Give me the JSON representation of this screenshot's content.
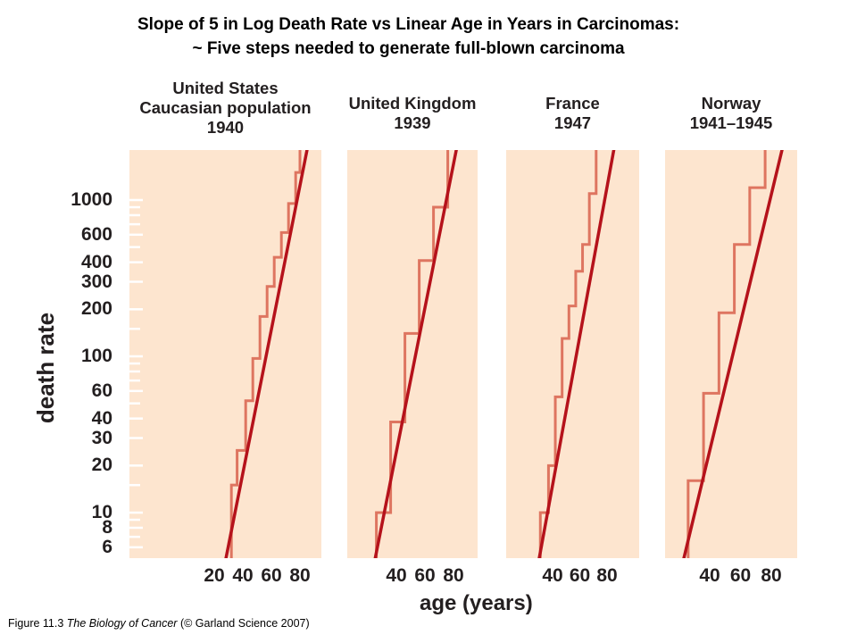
{
  "slide": {
    "title_line1": "Slope of 5 in Log Death Rate vs Linear Age in Years in Carcinomas:",
    "title_line2": "~ Five steps needed to generate full-blown carcinoma"
  },
  "caption": {
    "prefix": "Figure 11.3  ",
    "book": "The Biology of Cancer",
    "suffix": " (© Garland Science 2007)"
  },
  "chart_data": {
    "type": "line",
    "ylabel": "death rate",
    "xlabel": "age (years)",
    "y_scale": "log",
    "y_ticks": [
      6,
      8,
      10,
      20,
      30,
      40,
      60,
      100,
      200,
      300,
      400,
      600,
      1000
    ],
    "colors": {
      "panel_bg": "#fde5cf",
      "fit_line": "#b5121b",
      "steps": "#de7560"
    },
    "panels": [
      {
        "title": "United States\nCaucasian population\n1940",
        "x_tick_labels": [
          "20",
          "40",
          "60",
          "80"
        ],
        "fit_line": [
          [
            28,
            5
          ],
          [
            85,
            2100
          ]
        ],
        "steps": [
          [
            32,
            5
          ],
          [
            32,
            15
          ],
          [
            36,
            15
          ],
          [
            36,
            25
          ],
          [
            42,
            25
          ],
          [
            42,
            52
          ],
          [
            47,
            52
          ],
          [
            47,
            97
          ],
          [
            52,
            97
          ],
          [
            52,
            180
          ],
          [
            57,
            180
          ],
          [
            57,
            280
          ],
          [
            62,
            280
          ],
          [
            62,
            430
          ],
          [
            67,
            430
          ],
          [
            67,
            620
          ],
          [
            72,
            620
          ],
          [
            72,
            950
          ],
          [
            77,
            950
          ],
          [
            77,
            1500
          ],
          [
            80,
            1500
          ],
          [
            80,
            2100
          ]
        ]
      },
      {
        "title": "United Kingdom\n1939",
        "x_tick_labels": [
          "40",
          "60",
          "80"
        ],
        "fit_line": [
          [
            25,
            5
          ],
          [
            82,
            2100
          ]
        ],
        "steps": [
          [
            26,
            5
          ],
          [
            26,
            10
          ],
          [
            36,
            10
          ],
          [
            36,
            38
          ],
          [
            46,
            38
          ],
          [
            46,
            140
          ],
          [
            56,
            140
          ],
          [
            56,
            410
          ],
          [
            66,
            410
          ],
          [
            66,
            900
          ],
          [
            76,
            900
          ],
          [
            76,
            2100
          ]
        ]
      },
      {
        "title": "France\n1947",
        "x_tick_labels": [
          "40",
          "60",
          "80"
        ],
        "fit_line": [
          [
            30,
            5
          ],
          [
            85,
            2100
          ]
        ],
        "steps": [
          [
            31,
            5
          ],
          [
            31,
            10
          ],
          [
            37,
            10
          ],
          [
            37,
            20
          ],
          [
            42,
            20
          ],
          [
            42,
            55
          ],
          [
            47,
            55
          ],
          [
            47,
            130
          ],
          [
            52,
            130
          ],
          [
            52,
            210
          ],
          [
            57,
            210
          ],
          [
            57,
            350
          ],
          [
            62,
            350
          ],
          [
            62,
            520
          ],
          [
            67,
            520
          ],
          [
            67,
            1100
          ],
          [
            72,
            1100
          ],
          [
            72,
            2100
          ]
        ]
      },
      {
        "title": "Norway\n1941–1945",
        "x_tick_labels": [
          "40",
          "60",
          "80"
        ],
        "fit_line": [
          [
            23,
            5
          ],
          [
            87,
            2100
          ]
        ],
        "steps": [
          [
            26,
            5
          ],
          [
            26,
            16
          ],
          [
            36,
            16
          ],
          [
            36,
            58
          ],
          [
            46,
            58
          ],
          [
            46,
            190
          ],
          [
            56,
            190
          ],
          [
            56,
            520
          ],
          [
            66,
            520
          ],
          [
            66,
            1200
          ],
          [
            76,
            1200
          ],
          [
            76,
            2100
          ]
        ]
      }
    ]
  }
}
